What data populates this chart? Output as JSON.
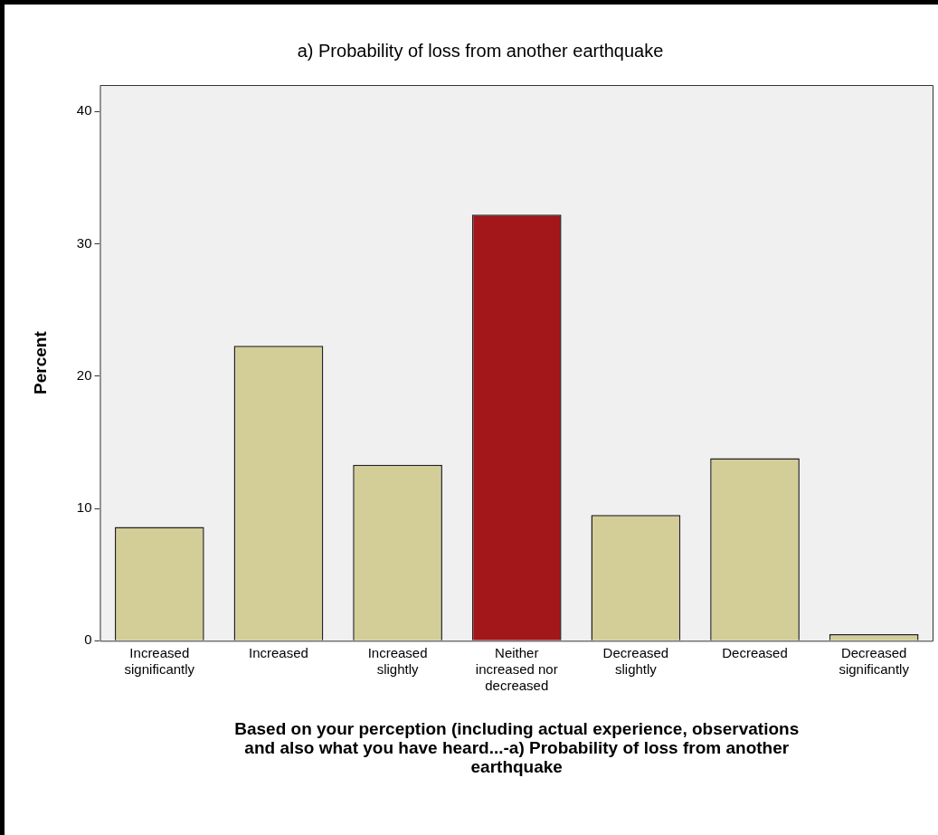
{
  "chart_data": {
    "type": "bar",
    "title": "a) Probability of loss from another earthquake",
    "xlabel": "Based on your perception (including actual experience, observations and also what you have heard...-a) Probability of loss from another earthquake",
    "ylabel": "Percent",
    "categories": [
      "Increased significantly",
      "Increased",
      "Increased slightly",
      "Neither increased nor decreased",
      "Decreased slightly",
      "Decreased",
      "Decreased significantly"
    ],
    "values": [
      8.6,
      22.3,
      13.3,
      32.2,
      9.5,
      13.8,
      0.5
    ],
    "colors": [
      "#d3ce97",
      "#d3ce97",
      "#d3ce97",
      "#a31619",
      "#d3ce97",
      "#d3ce97",
      "#d3ce97"
    ],
    "ylim": [
      0,
      42
    ],
    "yticks": [
      0,
      10,
      20,
      30,
      40
    ],
    "grid": false,
    "legend": false
  }
}
